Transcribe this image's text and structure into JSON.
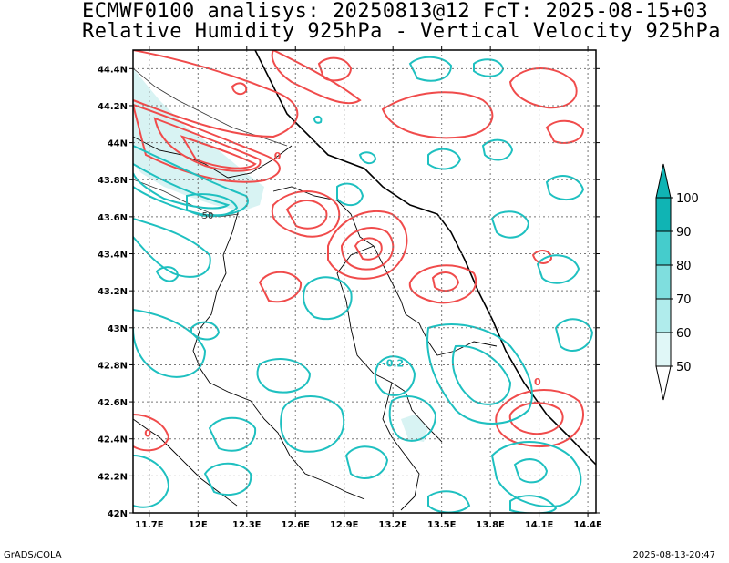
{
  "header": {
    "line1": "ECMWF0100 analisys: 20250813@12 FcT: 2025-08-15+03",
    "line2": "Relative Humidity 925hPa - Vertical Velocity 925hPa"
  },
  "footer": {
    "left": "GrADS/COLA",
    "right": "2025-08-13-20:47"
  },
  "chart_data": {
    "type": "map-contour",
    "xticks": [
      "11.7E",
      "12E",
      "12.3E",
      "12.6E",
      "12.9E",
      "13.2E",
      "13.5E",
      "13.8E",
      "14.1E",
      "14.4E"
    ],
    "xtick_values": [
      11.7,
      12.0,
      12.3,
      12.6,
      12.9,
      13.2,
      13.5,
      13.8,
      14.1,
      14.4
    ],
    "yticks": [
      "44.4N",
      "44.2N",
      "44N",
      "43.8N",
      "43.6N",
      "43.4N",
      "43.2N",
      "43N",
      "42.8N",
      "42.6N",
      "42.4N",
      "42.2N",
      "42N"
    ],
    "ytick_values": [
      44.4,
      44.2,
      44.0,
      43.8,
      43.6,
      43.4,
      43.2,
      43.0,
      42.8,
      42.6,
      42.4,
      42.2,
      42.0
    ],
    "xlim": [
      11.6,
      14.45
    ],
    "ylim": [
      42.0,
      44.5
    ],
    "grid": true,
    "colorbar": {
      "labels": [
        "100",
        "90",
        "80",
        "70",
        "60",
        "50"
      ],
      "values": [
        100,
        90,
        80,
        70,
        60,
        50
      ],
      "colors": [
        "#ffffff",
        "#e0f7f7",
        "#b0ecec",
        "#7fdede",
        "#45cccc",
        "#10b4b4"
      ]
    },
    "contour_labels": [
      {
        "text": "50",
        "x": 12.06,
        "y": 43.59
      },
      {
        "text": "0",
        "x": 12.49,
        "y": 43.91
      },
      {
        "text": "-0.2",
        "x": 13.2,
        "y": 42.79
      },
      {
        "text": "0",
        "x": 14.09,
        "y": 42.69
      },
      {
        "text": "0",
        "x": 11.69,
        "y": 42.41
      }
    ],
    "colors": {
      "positive": "#f04b4b",
      "negative": "#1ec0c0",
      "rh": "#333333",
      "shade": "#d8f3f3"
    }
  }
}
